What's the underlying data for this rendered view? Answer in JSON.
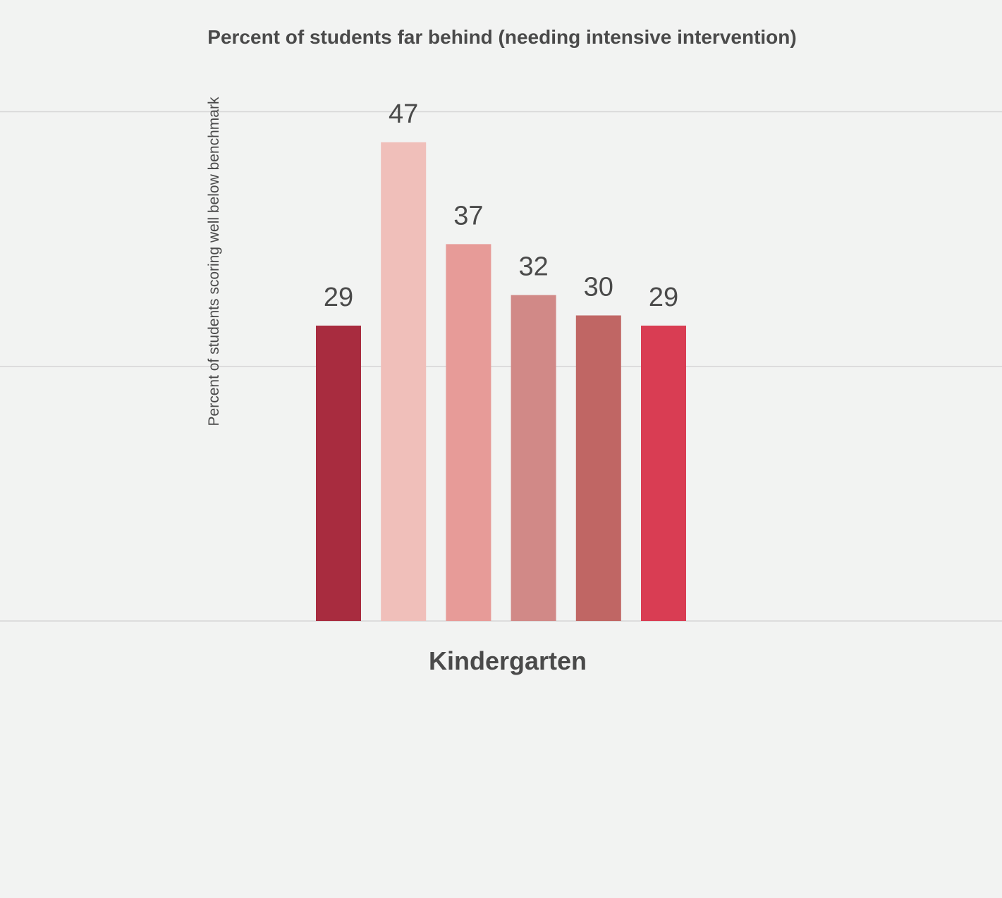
{
  "chart_data": {
    "type": "bar",
    "title": "Percent of students far behind (needing intensive intervention)",
    "ylabel": "Percent of students scoring well below benchmark",
    "xlabel": "",
    "categories": [
      "Kindergarten"
    ],
    "ylim": [
      0,
      50
    ],
    "gridlines": [
      25,
      50
    ],
    "grid": true,
    "legend": "none",
    "bars": [
      {
        "value": 29,
        "label": "29",
        "color": "#a82c3f"
      },
      {
        "value": 47,
        "label": "47",
        "color": "#f0bfba"
      },
      {
        "value": 37,
        "label": "37",
        "color": "#e79b98"
      },
      {
        "value": 32,
        "label": "32",
        "color": "#d18987"
      },
      {
        "value": 30,
        "label": "30",
        "color": "#c06664"
      },
      {
        "value": 29,
        "label": "29",
        "color": "#d93d53"
      }
    ]
  }
}
